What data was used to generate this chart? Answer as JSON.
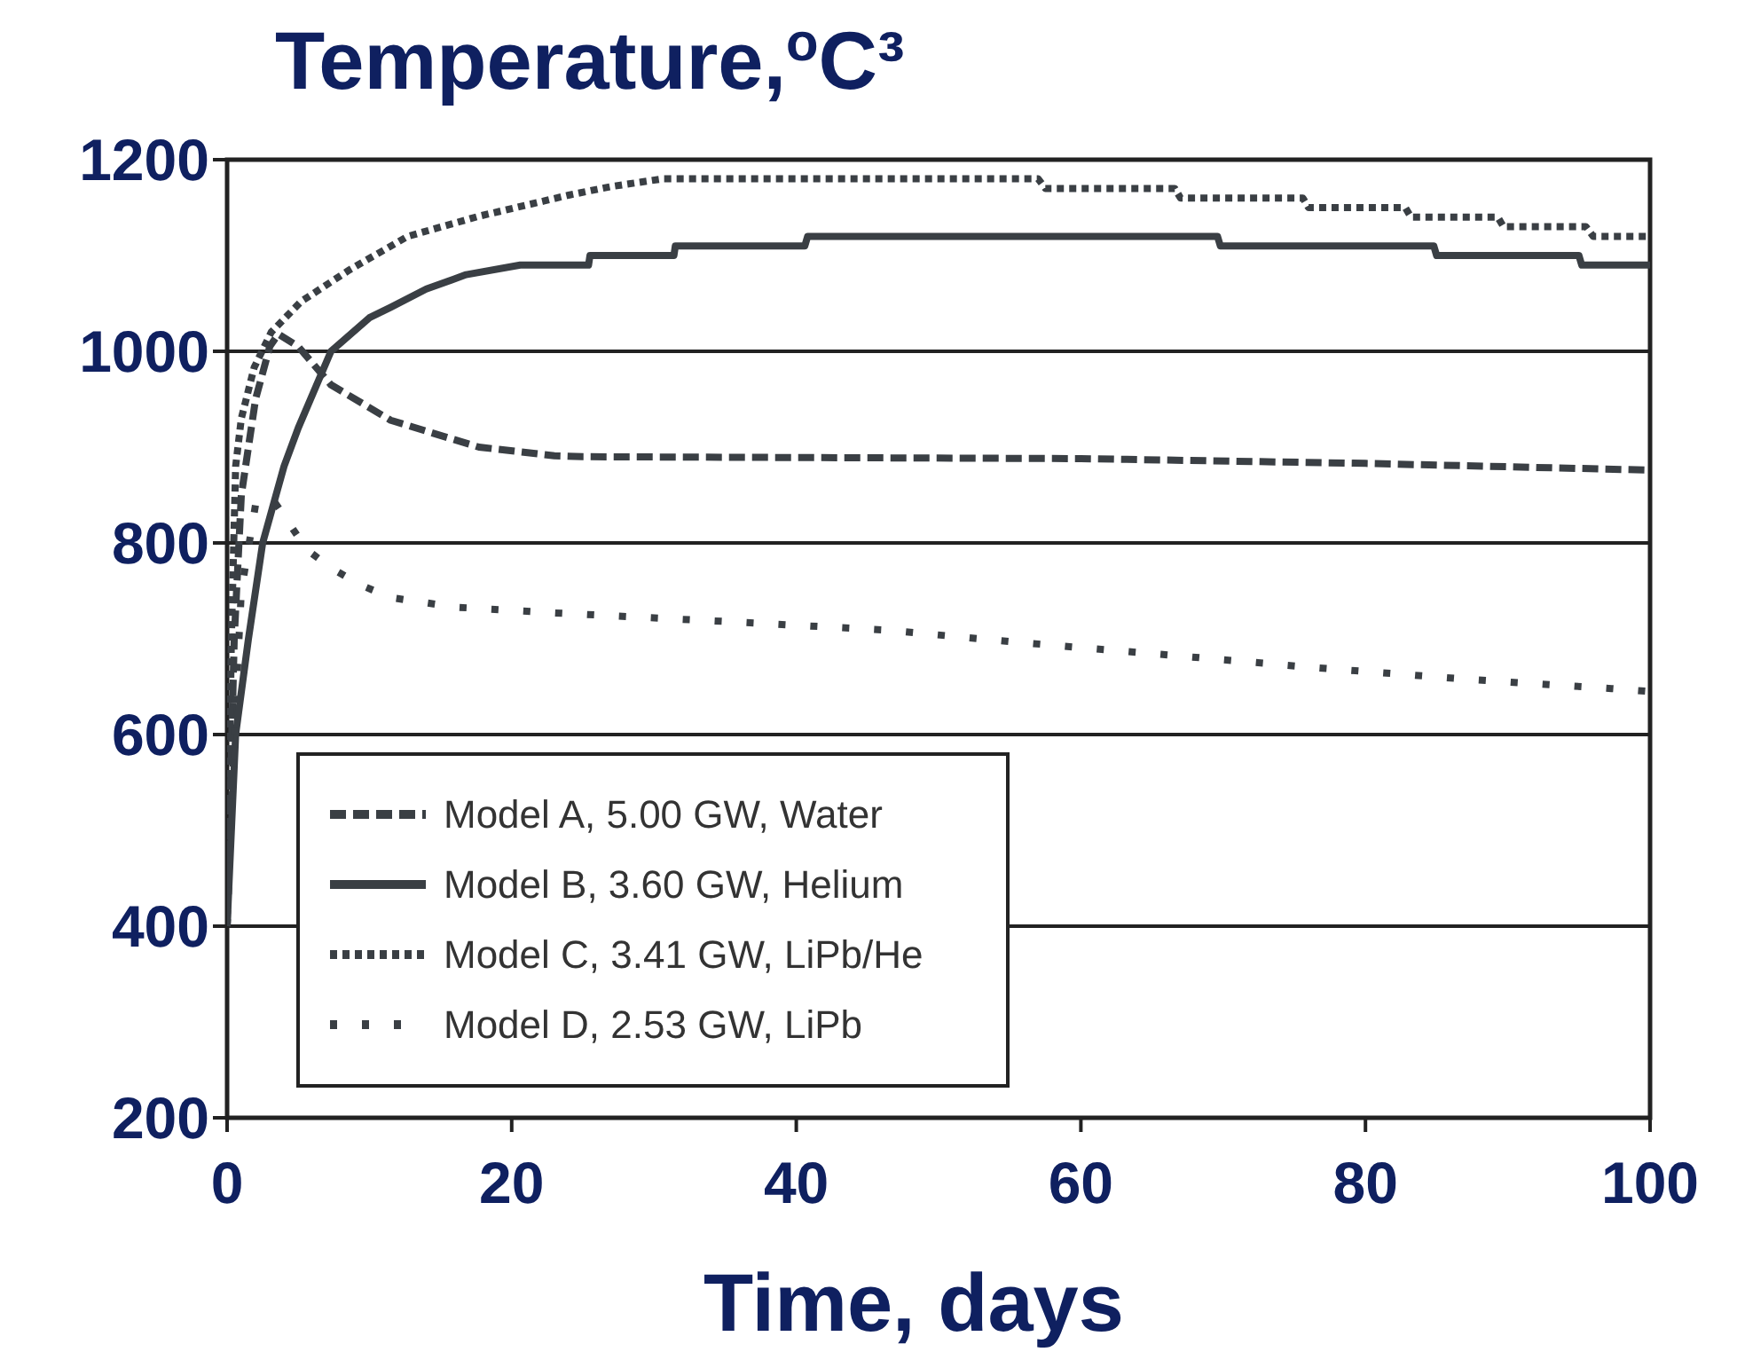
{
  "chart_data": {
    "type": "line",
    "title": "Temperature,$^{o}$C³",
    "xlabel": "Time, days",
    "xlim": [
      0,
      100
    ],
    "xticks": [
      0,
      20,
      40,
      60,
      80,
      100
    ],
    "ylim": [
      200,
      1200
    ],
    "yticks": [
      200,
      400,
      600,
      800,
      1000,
      1200
    ],
    "grid": "y",
    "legend": "bottom left",
    "series": [
      {
        "name": "Model A, 5.00 GW, Water",
        "color": "#3a3f44",
        "line_style": "dashed",
        "x": [
          0,
          0.5,
          1,
          2,
          3,
          3.6,
          5,
          7.3,
          11.5,
          17.7,
          23,
          25,
          60,
          80,
          100
        ],
        "values": [
          400,
          700,
          850,
          950,
          1005,
          1018,
          1005,
          965,
          928,
          900,
          891,
          890,
          888,
          883,
          876
        ]
      },
      {
        "name": "Model B, 3.60 GW, Helium",
        "color": "#3a3f44",
        "line_style": "solid",
        "x": [
          0,
          0.3,
          0.6,
          1.5,
          2.5,
          4,
          5,
          7.3,
          10,
          11.5,
          14,
          16.8,
          20.6,
          25.4,
          25.5,
          31.4,
          31.5,
          40.6,
          40.8,
          69.6,
          69.8,
          84.8,
          85,
          95,
          95.2,
          100
        ],
        "values": [
          400,
          500,
          600,
          700,
          800,
          880,
          920,
          1000,
          1035,
          1046,
          1065,
          1080,
          1090,
          1090,
          1100,
          1100,
          1110,
          1110,
          1120,
          1120,
          1110,
          1110,
          1100,
          1100,
          1090,
          1090
        ]
      },
      {
        "name": "Model C, 3.41 GW, LiPb/He",
        "color": "#3a3f44",
        "line_style": "dotted",
        "x": [
          0,
          0.3,
          0.6,
          1,
          1.9,
          3.1,
          5.2,
          8.6,
          12.7,
          17.7,
          22.3,
          24,
          27,
          30.6,
          57,
          57.5,
          66.6,
          67,
          75.6,
          76,
          82.8,
          83.2,
          89.3,
          89.7,
          95.5,
          96,
          100
        ],
        "values": [
          400,
          700,
          880,
          930,
          983,
          1020,
          1052,
          1085,
          1120,
          1141,
          1157,
          1163,
          1172,
          1180,
          1180,
          1170,
          1170,
          1160,
          1160,
          1150,
          1150,
          1140,
          1140,
          1130,
          1130,
          1120,
          1120
        ]
      },
      {
        "name": "Model D, 2.53 GW, LiPb",
        "color": "#3a3f44",
        "line_style": "dotted",
        "x": [
          0,
          0.5,
          1,
          2,
          3.1,
          5.6,
          7.3,
          9.4,
          11.5,
          16,
          23,
          35,
          46.4,
          55,
          64.6,
          76.3,
          87.8,
          97.3,
          100
        ],
        "values": [
          400,
          600,
          750,
          840,
          848,
          793,
          774,
          756,
          743,
          733,
          727,
          718,
          709,
          697,
          685,
          670,
          657,
          648,
          645
        ]
      }
    ]
  }
}
